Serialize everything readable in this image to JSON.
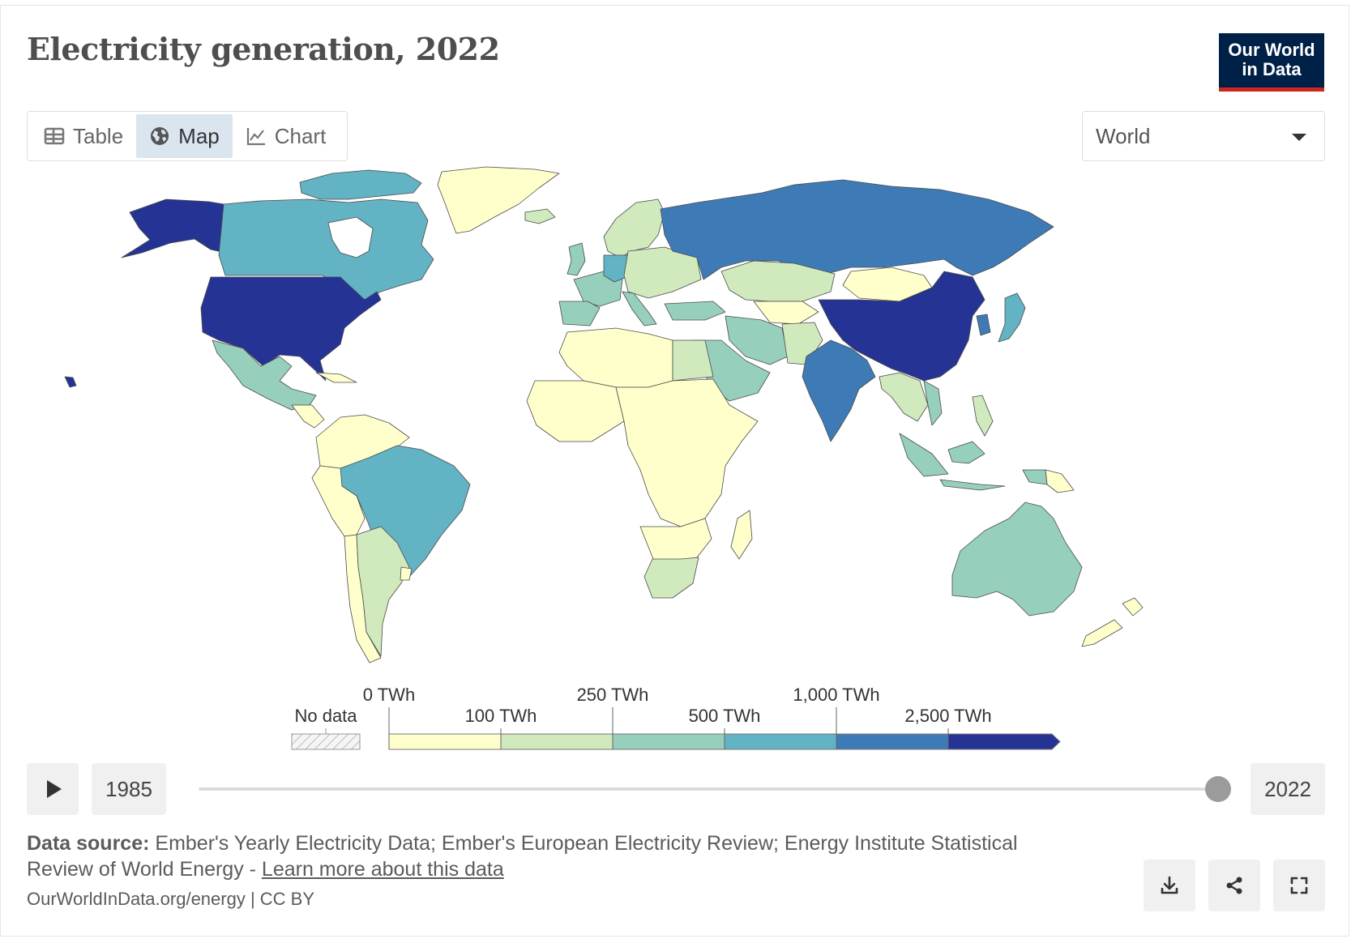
{
  "header": {
    "title": "Electricity generation, 2022",
    "logo_line1": "Our World",
    "logo_line2": "in Data"
  },
  "tabs": [
    {
      "label": "Table",
      "icon": "table-icon",
      "active": false
    },
    {
      "label": "Map",
      "icon": "globe-icon",
      "active": true
    },
    {
      "label": "Chart",
      "icon": "line-chart-icon",
      "active": false
    }
  ],
  "region_select": {
    "value": "World"
  },
  "legend": {
    "no_data_label": "No data",
    "bins": [
      {
        "label": "0 TWh",
        "color": "#ffffcc"
      },
      {
        "label": "100 TWh",
        "color": "#d0e9bd"
      },
      {
        "label": "250 TWh",
        "color": "#97cfbd"
      },
      {
        "label": "500 TWh",
        "color": "#62b3c4"
      },
      {
        "label": "1,000 TWh",
        "color": "#3e7bb6"
      },
      {
        "label": "2,500 TWh",
        "color": "#253494"
      }
    ]
  },
  "timeline": {
    "start_year": "1985",
    "end_year": "2022",
    "position": 1.0
  },
  "footer": {
    "source_label": "Data source:",
    "source_text": "Ember's Yearly Electricity Data; Ember's European Electricity Review; Energy Institute Statistical Review of World Energy - ",
    "learn_more": "Learn more about this data",
    "credit": "OurWorldInData.org/energy | CC BY"
  },
  "colors": {
    "ocean": "#ffffff",
    "border": "#4a4a4a",
    "logo_bg": "#002147",
    "logo_accent": "#ce261e"
  }
}
